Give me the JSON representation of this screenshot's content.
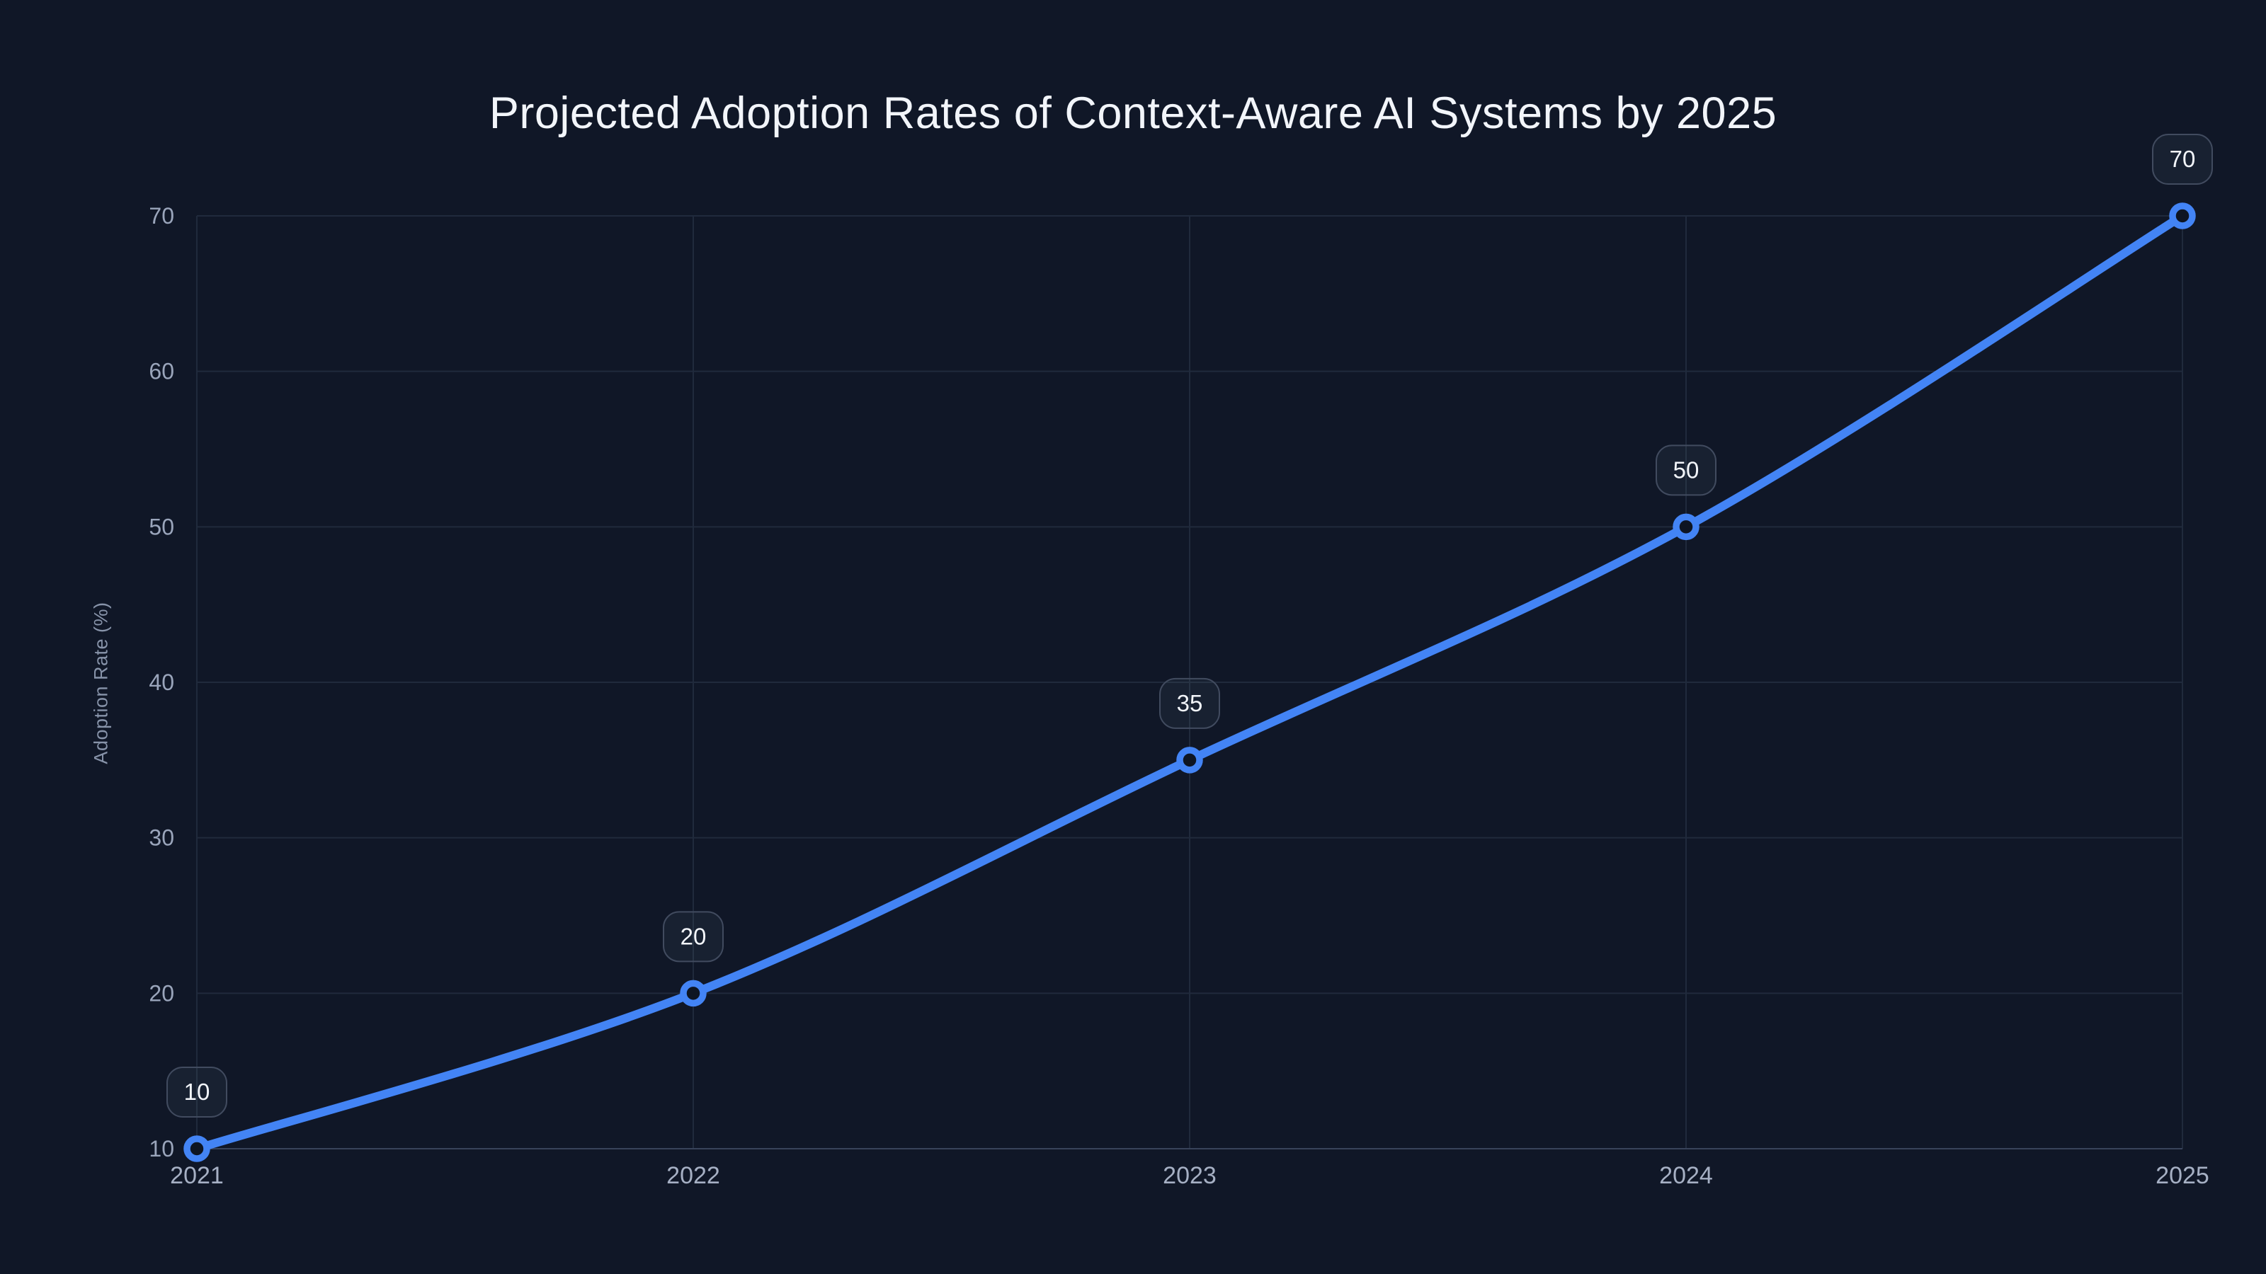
{
  "page": {
    "background": "#101727"
  },
  "chart_data": {
    "type": "line",
    "title": "Projected Adoption Rates of Context-Aware AI Systems by 2025",
    "xlabel": "",
    "ylabel": "Adoption Rate (%)",
    "x": [
      2021,
      2022,
      2023,
      2024,
      2025
    ],
    "x_tick_labels": [
      "2021",
      "2022",
      "2023",
      "2024",
      "2025"
    ],
    "series": [
      {
        "name": "Adoption Rate (%)",
        "values": [
          10,
          20,
          35,
          50,
          70
        ]
      }
    ],
    "point_labels": [
      "10",
      "20",
      "35",
      "50",
      "70"
    ],
    "ylim": [
      10,
      70
    ],
    "yticks": [
      10,
      20,
      30,
      40,
      50,
      60,
      70
    ],
    "ytick_labels": [
      "10",
      "20",
      "30",
      "40",
      "50",
      "60",
      "70"
    ],
    "grid": true,
    "legend": "none",
    "colors": {
      "background": "#101727",
      "line": "#4384f5",
      "marker_stroke": "#4384f5",
      "marker_fill": "#0e1522",
      "grid": "#202a3c",
      "axis_line": "#38435a",
      "x_tick_label": "#a6b0c4",
      "y_tick_label": "#9aa5bb",
      "title": "#f2f5fa",
      "axis_title": "#8793a9",
      "label_box_fill": "rgba(148,163,184,0.07)",
      "label_box_border": "#414b5f",
      "label_box_text": "#f2f5fa"
    }
  }
}
